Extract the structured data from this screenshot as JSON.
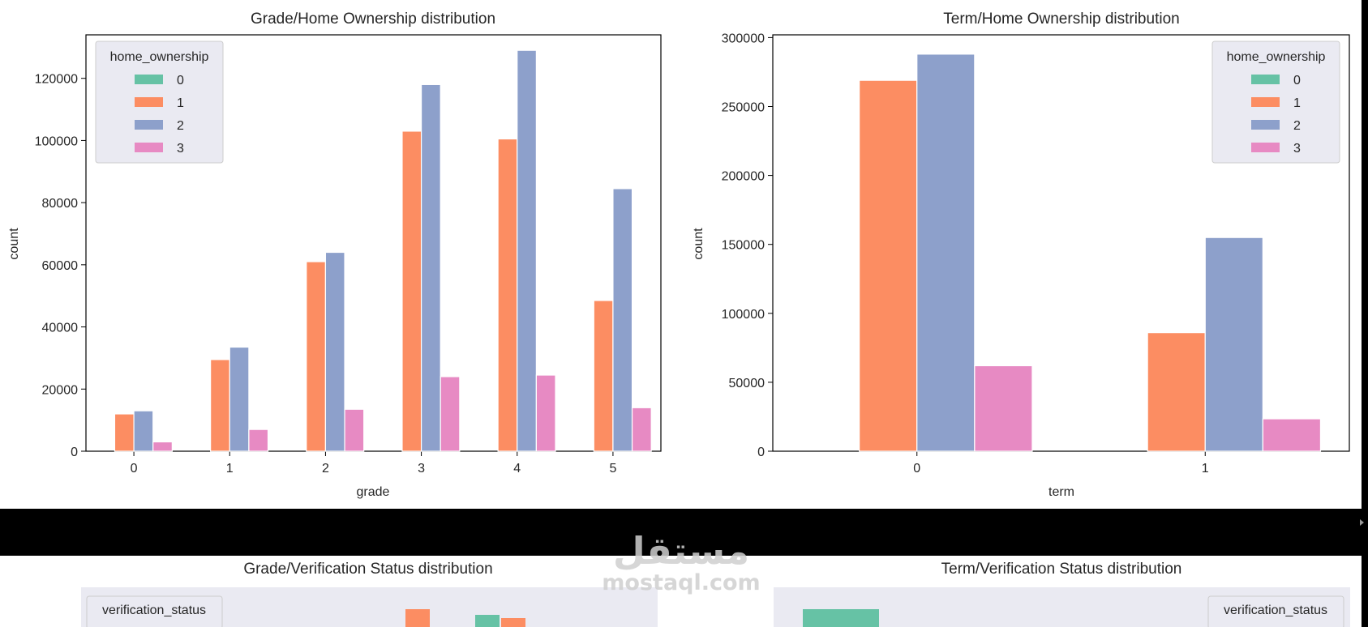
{
  "colors": {
    "hue_0": "#66c2a5",
    "hue_1": "#fc8d62",
    "hue_2": "#8da0cb",
    "hue_3": "#e78ac3"
  },
  "watermark": {
    "arabic": "مستقل",
    "latin": "mostaql.com"
  },
  "chart_data": [
    {
      "type": "bar",
      "title": "Grade/Home Ownership distribution",
      "xlabel": "grade",
      "ylabel": "count",
      "categories": [
        "0",
        "1",
        "2",
        "3",
        "4",
        "5"
      ],
      "ylim": [
        0,
        134000
      ],
      "yticks": [
        0,
        20000,
        40000,
        60000,
        80000,
        100000,
        120000
      ],
      "ytick_labels": [
        "0",
        "20000",
        "40000",
        "60000",
        "80000",
        "100000",
        "120000"
      ],
      "legend": {
        "title": "home_ownership",
        "position": "top-left"
      },
      "series": [
        {
          "name": "0",
          "values": [
            0,
            0,
            0,
            0,
            0,
            0
          ]
        },
        {
          "name": "1",
          "values": [
            12000,
            29500,
            61000,
            103000,
            100500,
            48500
          ]
        },
        {
          "name": "2",
          "values": [
            13000,
            33500,
            64000,
            118000,
            129000,
            84500
          ]
        },
        {
          "name": "3",
          "values": [
            3000,
            7000,
            13500,
            24000,
            24500,
            14000
          ]
        }
      ]
    },
    {
      "type": "bar",
      "title": "Term/Home Ownership distribution",
      "xlabel": "term",
      "ylabel": "count",
      "categories": [
        "0",
        "1"
      ],
      "ylim": [
        0,
        302000
      ],
      "yticks": [
        0,
        50000,
        100000,
        150000,
        200000,
        250000,
        300000
      ],
      "ytick_labels": [
        "0",
        "50000",
        "100000",
        "150000",
        "200000",
        "250000",
        "300000"
      ],
      "legend": {
        "title": "home_ownership",
        "position": "top-right"
      },
      "series": [
        {
          "name": "0",
          "values": [
            0,
            0
          ]
        },
        {
          "name": "1",
          "values": [
            269000,
            86000
          ]
        },
        {
          "name": "2",
          "values": [
            288000,
            155000
          ]
        },
        {
          "name": "3",
          "values": [
            62000,
            23500
          ]
        }
      ]
    },
    {
      "type": "bar",
      "title": "Grade/Verification Status distribution",
      "legend": {
        "title": "verification_status",
        "position": "top-left"
      },
      "partially_visible": true
    },
    {
      "type": "bar",
      "title": "Term/Verification Status distribution",
      "legend": {
        "title": "verification_status",
        "position": "top-right"
      },
      "partially_visible": true
    }
  ]
}
